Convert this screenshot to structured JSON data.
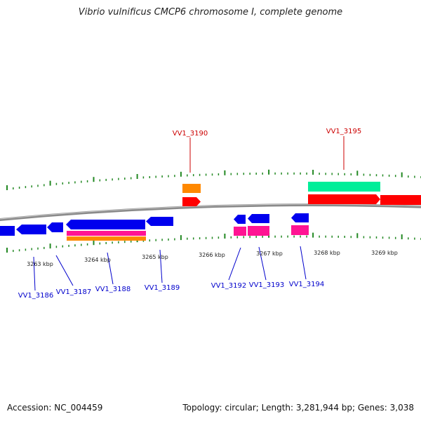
{
  "title": "Vibrio vulnificus CMCP6 chromosome I, complete genome",
  "accession": "Accession: NC_004459",
  "summary": "Topology: circular; Length: 3,281,944 bp; Genes: 3,038",
  "colors": {
    "chromosome": "#888888",
    "tick": "#228822",
    "gene_blue": "#0000ee",
    "gene_red": "#ff0000",
    "gene_orange": "#ff8800",
    "gene_pink": "#ff1493",
    "gene_teal": "#00ee99",
    "label_blue": "#0000cc",
    "label_red": "#cc0000"
  },
  "kbp_labels": [
    "3263 kbp",
    "3264 kbp",
    "3265 kbp",
    "3266 kbp",
    "3267 kbp",
    "3268 kbp",
    "3269 kbp"
  ],
  "gene_labels_top": [
    "VV1_3190",
    "VV1_3195"
  ],
  "gene_labels_bottom": [
    "VV1_3186",
    "VV1_3187",
    "VV1_3188",
    "VV1_3189",
    "VV1_3192",
    "VV1_3193",
    "VV1_3194"
  ]
}
